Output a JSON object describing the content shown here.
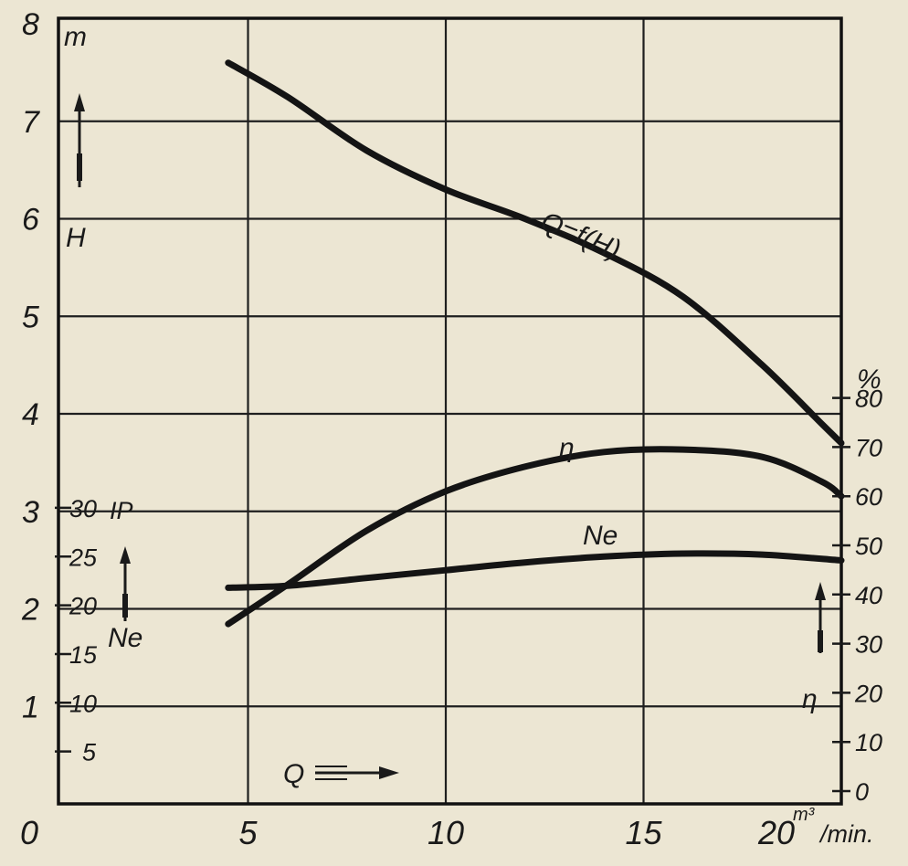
{
  "chart_data": {
    "type": "line",
    "x_axis": {
      "unit_main": "20",
      "unit_sup": "m³",
      "unit_suffix": "/min.",
      "range": [
        0,
        20
      ],
      "ticks": [
        {
          "value": 0,
          "label": "0"
        },
        {
          "value": 5,
          "label": "5"
        },
        {
          "value": 10,
          "label": "10"
        },
        {
          "value": 15,
          "label": "15"
        }
      ],
      "symbol": "Q"
    },
    "y_axis_left": {
      "unit": "m",
      "symbol": "H",
      "range": [
        0,
        8
      ],
      "ticks": [
        "1",
        "2",
        "3",
        "4",
        "5",
        "6",
        "7",
        "8"
      ]
    },
    "y_axis_power": {
      "unit": "IP",
      "symbol": "Ne",
      "range": [
        0,
        30
      ],
      "ticks": [
        {
          "value": 5,
          "label": "5"
        },
        {
          "value": 10,
          "label": "10"
        },
        {
          "value": 15,
          "label": "15"
        },
        {
          "value": 20,
          "label": "20"
        },
        {
          "value": 25,
          "label": "25"
        },
        {
          "value": 30,
          "label": "30"
        }
      ]
    },
    "y_axis_right": {
      "unit": "%",
      "symbol": "η",
      "range": [
        0,
        80
      ],
      "ticks": [
        "0",
        "10",
        "20",
        "30",
        "40",
        "50",
        "60",
        "70",
        "80"
      ]
    },
    "series": [
      {
        "name": "Q=f(H)",
        "axis": "left",
        "x": [
          4.5,
          6,
          8,
          10,
          12,
          14,
          16,
          18,
          19.5,
          20
        ],
        "y": [
          7.6,
          7.25,
          6.7,
          6.3,
          6.0,
          5.65,
          5.2,
          4.5,
          3.9,
          3.7
        ]
      },
      {
        "name": "η",
        "axis": "right",
        "x": [
          4.5,
          6,
          8,
          10,
          12,
          14,
          16,
          18,
          19.5,
          20
        ],
        "y": [
          34,
          42,
          53,
          61,
          66,
          69,
          69.5,
          68,
          63,
          60
        ]
      },
      {
        "name": "Ne",
        "axis": "power",
        "x": [
          4.5,
          6,
          8,
          10,
          12,
          14,
          16,
          18,
          20
        ],
        "y": [
          21.8,
          22,
          22.8,
          23.6,
          24.4,
          25,
          25.3,
          25.2,
          24.6
        ]
      }
    ],
    "grid": true
  }
}
